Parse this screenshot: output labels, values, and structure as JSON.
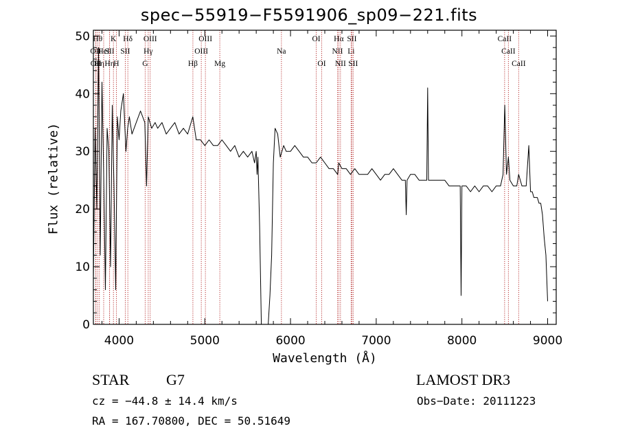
{
  "chart_data": {
    "type": "line",
    "title": "spec−55919−F5591906_sp09−221.fits",
    "xlabel": "Wavelength (Å)",
    "ylabel": "Flux (relative)",
    "xlim": [
      3700,
      9100
    ],
    "ylim": [
      0,
      51
    ],
    "x_ticks": [
      4000,
      5000,
      6000,
      7000,
      8000,
      9000
    ],
    "y_ticks": [
      0,
      10,
      20,
      30,
      40,
      50
    ],
    "y_tick_labels": [
      "0",
      "10",
      "20",
      "30",
      "40",
      "50"
    ],
    "series": [
      {
        "name": "flux",
        "x": [
          3700,
          3720,
          3740,
          3760,
          3780,
          3800,
          3820,
          3840,
          3860,
          3880,
          3900,
          3920,
          3940,
          3960,
          3980,
          4000,
          4020,
          4050,
          4080,
          4100,
          4120,
          4150,
          4200,
          4250,
          4300,
          4320,
          4340,
          4380,
          4420,
          4450,
          4500,
          4550,
          4600,
          4650,
          4700,
          4750,
          4800,
          4860,
          4900,
          4950,
          5000,
          5050,
          5100,
          5150,
          5200,
          5250,
          5300,
          5350,
          5400,
          5450,
          5500,
          5550,
          5580,
          5600,
          5610,
          5620,
          5640,
          5660,
          5680,
          5700,
          5720,
          5740,
          5760,
          5780,
          5800,
          5820,
          5850,
          5880,
          5900,
          5920,
          5950,
          6000,
          6050,
          6100,
          6150,
          6200,
          6250,
          6300,
          6350,
          6400,
          6450,
          6500,
          6550,
          6563,
          6600,
          6650,
          6700,
          6750,
          6800,
          6850,
          6900,
          6950,
          7000,
          7050,
          7100,
          7150,
          7200,
          7250,
          7300,
          7340,
          7350,
          7360,
          7400,
          7450,
          7500,
          7550,
          7590,
          7600,
          7610,
          7650,
          7700,
          7750,
          7800,
          7850,
          7900,
          7950,
          7980,
          7990,
          8000,
          8050,
          8100,
          8150,
          8200,
          8250,
          8300,
          8350,
          8400,
          8450,
          8480,
          8500,
          8520,
          8542,
          8560,
          8600,
          8640,
          8662,
          8700,
          8750,
          8780,
          8800,
          8820,
          8840,
          8860,
          8880,
          8900,
          8920,
          8940,
          8960,
          8980,
          9000
        ],
        "y": [
          8,
          34,
          20,
          48,
          12,
          42,
          26,
          6,
          34,
          30,
          10,
          38,
          24,
          6,
          36,
          32,
          37,
          40,
          30,
          34,
          36,
          33,
          35,
          37,
          35,
          24,
          36,
          34,
          35,
          34,
          35,
          33,
          34,
          35,
          33,
          34,
          33,
          36,
          32,
          32,
          31,
          32,
          31,
          31,
          32,
          31,
          30,
          31,
          29,
          30,
          29,
          30,
          28,
          30,
          26,
          29,
          17,
          0,
          0,
          0,
          0,
          0,
          5,
          12,
          28,
          34,
          33,
          29,
          30,
          31,
          30,
          30,
          31,
          30,
          29,
          29,
          28,
          28,
          29,
          28,
          27,
          27,
          26,
          28,
          27,
          27,
          26,
          27,
          26,
          26,
          26,
          27,
          26,
          25,
          26,
          26,
          27,
          26,
          25,
          25,
          19,
          25,
          26,
          26,
          25,
          25,
          25,
          41,
          25,
          25,
          25,
          25,
          25,
          24,
          24,
          24,
          24,
          5,
          24,
          24,
          23,
          24,
          23,
          24,
          24,
          23,
          24,
          24,
          26,
          38,
          26,
          29,
          25,
          24,
          24,
          26,
          24,
          24,
          31,
          23,
          23,
          22,
          22,
          22,
          21,
          21,
          19,
          15,
          12,
          4
        ]
      }
    ],
    "line_markers": [
      {
        "wavelength": 3750,
        "label": "Hθ",
        "row": 1
      },
      {
        "wavelength": 3727,
        "label": "OII",
        "row": 2
      },
      {
        "wavelength": 3730,
        "label": "OII",
        "row": 3
      },
      {
        "wavelength": 3770,
        "label": "Hη",
        "row": 3
      },
      {
        "wavelength": 3820,
        "label": "HeI",
        "row": 2
      },
      {
        "wavelength": 3889,
        "label": "SII",
        "row": 2
      },
      {
        "wavelength": 3889,
        "label": "Hη",
        "row": 3
      },
      {
        "wavelength": 3934,
        "label": "K",
        "row": 1
      },
      {
        "wavelength": 3968,
        "label": "H",
        "row": 3
      },
      {
        "wavelength": 4102,
        "label": "Hδ",
        "row": 1
      },
      {
        "wavelength": 4072,
        "label": "SII",
        "row": 2
      },
      {
        "wavelength": 4304,
        "label": "G",
        "row": 3
      },
      {
        "wavelength": 4340,
        "label": "Hγ",
        "row": 2
      },
      {
        "wavelength": 4363,
        "label": "OIII",
        "row": 1
      },
      {
        "wavelength": 4861,
        "label": "Hβ",
        "row": 3
      },
      {
        "wavelength": 4959,
        "label": "OIII",
        "row": 2
      },
      {
        "wavelength": 5007,
        "label": "OIII",
        "row": 1
      },
      {
        "wavelength": 5175,
        "label": "Mg",
        "row": 3
      },
      {
        "wavelength": 5894,
        "label": "Na",
        "row": 2
      },
      {
        "wavelength": 6300,
        "label": "OI",
        "row": 1
      },
      {
        "wavelength": 6364,
        "label": "OI",
        "row": 3
      },
      {
        "wavelength": 6548,
        "label": "NII",
        "row": 2
      },
      {
        "wavelength": 6563,
        "label": "Hα",
        "row": 1
      },
      {
        "wavelength": 6583,
        "label": "NII",
        "row": 3
      },
      {
        "wavelength": 6707,
        "label": "Li",
        "row": 2
      },
      {
        "wavelength": 6716,
        "label": "SII",
        "row": 1
      },
      {
        "wavelength": 6731,
        "label": "SII",
        "row": 3
      },
      {
        "wavelength": 8498,
        "label": "CaII",
        "row": 1
      },
      {
        "wavelength": 8542,
        "label": "CaII",
        "row": 2
      },
      {
        "wavelength": 8662,
        "label": "CaII",
        "row": 3
      }
    ]
  },
  "info": {
    "object_class": "STAR",
    "subclass": "G7",
    "survey": "LAMOST DR3",
    "redshift": "cz = −44.8 ± 14.4 km/s",
    "obs_date": "Obs−Date: 20111223",
    "coords": "RA = 167.70800, DEC =  50.51649"
  },
  "colors": {
    "axis": "#000000",
    "spectrum": "#000000",
    "marker": "#b22222"
  }
}
